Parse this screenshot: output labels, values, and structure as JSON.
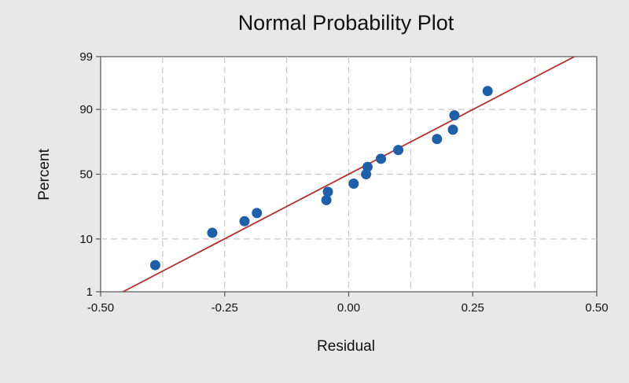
{
  "chart_data": {
    "type": "scatter",
    "title": "Normal Probability Plot",
    "xlabel": "Residual",
    "ylabel": "Percent",
    "xlim": [
      -0.5,
      0.5
    ],
    "y_scale": "normal-probability",
    "ylim": [
      1,
      99
    ],
    "x_ticks": [
      -0.5,
      -0.25,
      0.0,
      0.25,
      0.5
    ],
    "x_tick_labels": [
      "-0.50",
      "-0.25",
      "0.00",
      "0.25",
      "0.50"
    ],
    "y_ticks": [
      1,
      10,
      50,
      90,
      99
    ],
    "y_tick_labels": [
      "1",
      "10",
      "50",
      "90",
      "99"
    ],
    "grid": true,
    "grid_style": "dashed",
    "point_color": "#1f5fa8",
    "line_color": "#b03030",
    "plot_background": "#ffffff",
    "figure_background": "#e8e8e8",
    "points": [
      {
        "x": -0.39,
        "y": 3.6
      },
      {
        "x": -0.275,
        "y": 12.3
      },
      {
        "x": -0.21,
        "y": 17.6
      },
      {
        "x": -0.185,
        "y": 22.1
      },
      {
        "x": -0.045,
        "y": 30.4
      },
      {
        "x": -0.042,
        "y": 36.4
      },
      {
        "x": 0.01,
        "y": 42.6
      },
      {
        "x": 0.035,
        "y": 50.0
      },
      {
        "x": 0.038,
        "y": 55.7
      },
      {
        "x": 0.065,
        "y": 62.0
      },
      {
        "x": 0.1,
        "y": 68.4
      },
      {
        "x": 0.178,
        "y": 75.7
      },
      {
        "x": 0.21,
        "y": 81.1
      },
      {
        "x": 0.213,
        "y": 87.8
      },
      {
        "x": 0.28,
        "y": 95.0
      }
    ],
    "fit_line": {
      "x": [
        -0.455,
        0.455
      ],
      "y": [
        1,
        99
      ]
    }
  }
}
